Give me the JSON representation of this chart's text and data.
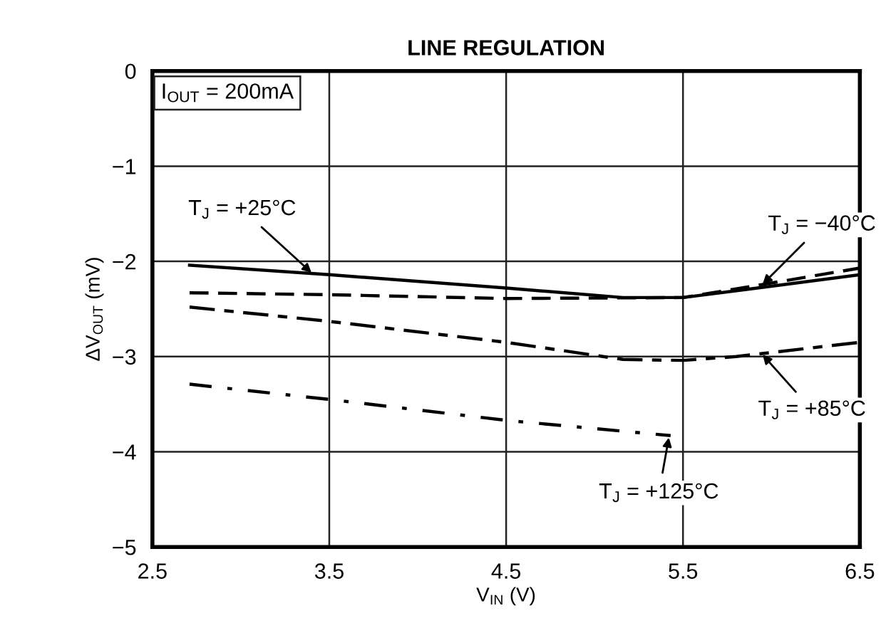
{
  "chart_data": {
    "type": "line",
    "title": "LINE REGULATION",
    "xlabel": "V$_{IN}$ (V)",
    "ylabel": "ΔV$_{OUT}$ (mV)",
    "xlim": [
      2.5,
      6.5
    ],
    "xticks": [
      2.5,
      3.5,
      4.5,
      5.5,
      6.5
    ],
    "ylim": [
      -5,
      0
    ],
    "yticks": [
      {
        "value": -5,
        "label": "−5"
      },
      {
        "value": -4,
        "label": "−4"
      },
      {
        "value": -3,
        "label": "−3"
      },
      {
        "value": -2,
        "label": "−2"
      },
      {
        "value": -1,
        "label": "−1"
      },
      0
    ],
    "grid": true,
    "marker": "none",
    "series": [
      {
        "color": "#000000",
        "line_style": "solid",
        "x": [
          2.71,
          3.5,
          4.5,
          5.16,
          5.5,
          5.96,
          6.5
        ],
        "values": [
          -2.04,
          -2.14,
          -2.28,
          -2.38,
          -2.38,
          -2.27,
          -2.14
        ]
      },
      {
        "color": "#000000",
        "line_style": "dashed",
        "x": [
          2.71,
          3.5,
          4.5,
          5.5,
          5.96,
          6.5
        ],
        "values": [
          -2.33,
          -2.35,
          -2.39,
          -2.38,
          -2.24,
          -2.07
        ]
      },
      {
        "color": "#000000",
        "line_style": "dashdot",
        "x": [
          2.71,
          3.5,
          4.5,
          5.16,
          5.5,
          5.8,
          6.5
        ],
        "values": [
          -2.48,
          -2.63,
          -2.85,
          -3.03,
          -3.04,
          -3.0,
          -2.85
        ]
      },
      {
        "color": "#000000",
        "line_style": "dashdotted",
        "x": [
          2.71,
          3.5,
          4.5,
          5.43
        ],
        "values": [
          -3.29,
          -3.45,
          -3.67,
          -3.83
        ]
      }
    ],
    "annotations": [
      "I$_{OUT}$ = 200mA",
      {
        "text": "T$_{J}$ = +25°C",
        "x": 3.4,
        "y": -2.12
      },
      {
        "text": "T$_{J}$ = −40°C",
        "x": 5.95,
        "y": -2.24
      },
      {
        "text": "T$_{J}$ = +85°C",
        "x": 5.95,
        "y": -2.98
      },
      {
        "text": "T$_{J}$ = +125°C",
        "x": 5.42,
        "y": -3.85
      }
    ]
  }
}
